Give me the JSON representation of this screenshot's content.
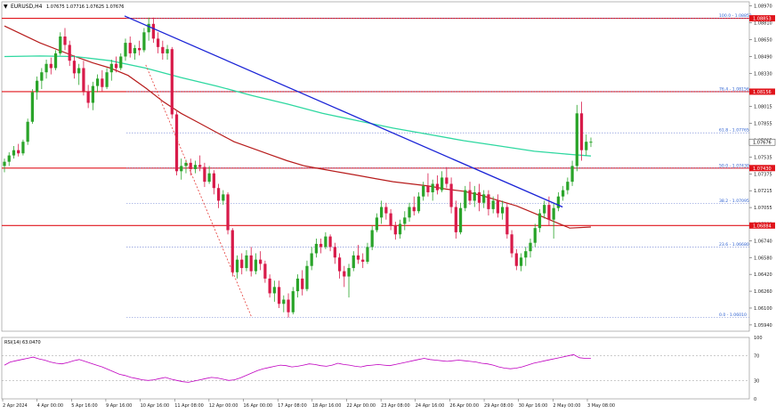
{
  "header": {
    "symbol": "EURUSD,H4",
    "ohlc": "1.07675 1.07716 1.07625 1.07676"
  },
  "colors": {
    "bull": "#2aa42a",
    "bear": "#d81b4a",
    "hline": "#e0141b",
    "trend": "#1a23d6",
    "ma_slow": "#b71c1c",
    "ma_fast": "#2ed8a0",
    "rsi": "#c000c0",
    "fib": "#2b5fd1",
    "axis_text": "#222222",
    "grid": "#dddddd"
  },
  "chart_data": [
    {
      "type": "candlestick",
      "title": "EURUSD,H4",
      "y_ticks": [
        "1.08970",
        "1.08810",
        "1.08650",
        "1.08490",
        "1.08330",
        "1.08170",
        "1.08015",
        "1.07855",
        "1.07695",
        "1.07535",
        "1.07375",
        "1.07215",
        "1.07055",
        "1.06900",
        "1.06740",
        "1.06580",
        "1.06420",
        "1.06260",
        "1.06100",
        "1.05940"
      ],
      "ylim": [
        1.0588,
        1.0901
      ],
      "x_ticks": [
        "2 Apr 2024",
        "4 Apr 00:00",
        "5 Apr 16:00",
        "9 Apr 16:00",
        "10 Apr 16:00",
        "11 Apr 08:00",
        "12 Apr 00:00",
        "16 Apr 00:00",
        "17 Apr 08:00",
        "18 Apr 16:00",
        "22 Apr 00:00",
        "23 Apr 08:00",
        "24 Apr 16:00",
        "26 Apr 00:00",
        "29 Apr 08:00",
        "30 Apr 16:00",
        "2 May 00:00",
        "3 May 08:00"
      ],
      "price_labels": [
        {
          "price": 1.08853,
          "text": "1.08853"
        },
        {
          "price": 1.08156,
          "text": "1.08156"
        },
        {
          "price": 1.07676,
          "text": "1.07676"
        },
        {
          "price": 1.0743,
          "text": "1.07430"
        },
        {
          "price": 1.06884,
          "text": "1.06884"
        }
      ],
      "horizontal_levels": [
        1.08853,
        1.08156,
        1.0743,
        1.06884
      ],
      "fibonacci": [
        {
          "label": "100.0 - 1.08853",
          "price": 1.08853
        },
        {
          "label": "76.4 - 1.08156",
          "price": 1.08156
        },
        {
          "label": "61.8 - 1.07765",
          "price": 1.07765
        },
        {
          "label": "50.0 - 1.07430",
          "price": 1.0743
        },
        {
          "label": "38.2 - 1.07095",
          "price": 1.07095
        },
        {
          "label": "23.6 - 1.06680",
          "price": 1.0668
        },
        {
          "label": "0.0 - 1.06010",
          "price": 1.0601
        }
      ],
      "trendline": {
        "from": [
          34,
          1.08875
        ],
        "to": [
          158,
          1.0706
        ]
      },
      "retrace_line": {
        "from": [
          40,
          1.0841
        ],
        "to": [
          70,
          1.0601
        ]
      },
      "ma_fast": [
        [
          0,
          1.0849
        ],
        [
          10,
          1.08495
        ],
        [
          20,
          1.0849
        ],
        [
          30,
          1.0845
        ],
        [
          40,
          1.0838
        ],
        [
          50,
          1.0829
        ],
        [
          60,
          1.0821
        ],
        [
          70,
          1.0812
        ],
        [
          80,
          1.0804
        ],
        [
          90,
          1.0795
        ],
        [
          100,
          1.0788
        ],
        [
          110,
          1.0781
        ],
        [
          120,
          1.0775
        ],
        [
          130,
          1.0769
        ],
        [
          140,
          1.0764
        ],
        [
          150,
          1.0759
        ],
        [
          160,
          1.0756
        ],
        [
          166,
          1.07545
        ]
      ],
      "ma_slow": [
        [
          0,
          1.0878
        ],
        [
          10,
          1.0862
        ],
        [
          20,
          1.0849
        ],
        [
          25,
          1.0843
        ],
        [
          30,
          1.0838
        ],
        [
          35,
          1.0831
        ],
        [
          40,
          1.0819
        ],
        [
          45,
          1.0806
        ],
        [
          50,
          1.0795
        ],
        [
          55,
          1.0786
        ],
        [
          60,
          1.0777
        ],
        [
          65,
          1.0768
        ],
        [
          70,
          1.0762
        ],
        [
          75,
          1.0756
        ],
        [
          80,
          1.075
        ],
        [
          85,
          1.0745
        ],
        [
          90,
          1.0742
        ],
        [
          95,
          1.0739
        ],
        [
          100,
          1.0736
        ],
        [
          105,
          1.0733
        ],
        [
          110,
          1.073
        ],
        [
          115,
          1.0728
        ],
        [
          120,
          1.0726
        ],
        [
          125,
          1.0723
        ],
        [
          130,
          1.0721
        ],
        [
          135,
          1.0717
        ],
        [
          140,
          1.0712
        ],
        [
          145,
          1.0707
        ],
        [
          150,
          1.07
        ],
        [
          155,
          1.0693
        ],
        [
          160,
          1.0686
        ],
        [
          166,
          1.0687
        ]
      ],
      "candles": [
        [
          1.0745,
          1.0752,
          1.0739,
          1.0749
        ],
        [
          1.0749,
          1.0758,
          1.0745,
          1.0755
        ],
        [
          1.0755,
          1.0764,
          1.0752,
          1.076
        ],
        [
          1.076,
          1.0766,
          1.0754,
          1.0757
        ],
        [
          1.0757,
          1.077,
          1.0755,
          1.0768
        ],
        [
          1.0768,
          1.079,
          1.0765,
          1.0787
        ],
        [
          1.0787,
          1.0818,
          1.0785,
          1.0815
        ],
        [
          1.0815,
          1.083,
          1.0808,
          1.0826
        ],
        [
          1.0826,
          1.0838,
          1.0818,
          1.0834
        ],
        [
          1.0834,
          1.0846,
          1.0828,
          1.0842
        ],
        [
          1.0842,
          1.0848,
          1.0832,
          1.0838
        ],
        [
          1.0838,
          1.0855,
          1.0836,
          1.0852
        ],
        [
          1.0852,
          1.0872,
          1.085,
          1.0868
        ],
        [
          1.0868,
          1.0876,
          1.0855,
          1.086
        ],
        [
          1.086,
          1.0864,
          1.084,
          1.0845
        ],
        [
          1.0845,
          1.085,
          1.0828,
          1.0833
        ],
        [
          1.0833,
          1.0842,
          1.0822,
          1.0838
        ],
        [
          1.0838,
          1.0845,
          1.0812,
          1.0816
        ],
        [
          1.0816,
          1.0822,
          1.08,
          1.0805
        ],
        [
          1.0805,
          1.0825,
          1.0798,
          1.0821
        ],
        [
          1.0821,
          1.0832,
          1.0815,
          1.0828
        ],
        [
          1.0828,
          1.0836,
          1.0816,
          1.082
        ],
        [
          1.082,
          1.0838,
          1.0818,
          1.0834
        ],
        [
          1.0834,
          1.0846,
          1.0826,
          1.0842
        ],
        [
          1.0842,
          1.0849,
          1.0834,
          1.0838
        ],
        [
          1.0838,
          1.0852,
          1.0836,
          1.0849
        ],
        [
          1.0849,
          1.0866,
          1.0845,
          1.0862
        ],
        [
          1.0862,
          1.0868,
          1.0848,
          1.0852
        ],
        [
          1.0852,
          1.086,
          1.0846,
          1.0857
        ],
        [
          1.0857,
          1.0864,
          1.085,
          1.0855
        ],
        [
          1.0855,
          1.0876,
          1.0853,
          1.0872
        ],
        [
          1.0872,
          1.0886,
          1.0864,
          1.088
        ],
        [
          1.088,
          1.0886,
          1.0862,
          1.0866
        ],
        [
          1.0866,
          1.0872,
          1.0852,
          1.0858
        ],
        [
          1.0858,
          1.0864,
          1.0846,
          1.0852
        ],
        [
          1.0852,
          1.086,
          1.0846,
          1.0856
        ],
        [
          1.0856,
          1.0858,
          1.079,
          1.0794
        ],
        [
          1.0794,
          1.0797,
          1.0736,
          1.074
        ],
        [
          1.074,
          1.0752,
          1.0732,
          1.0745
        ],
        [
          1.0745,
          1.0751,
          1.0738,
          1.0748
        ],
        [
          1.0748,
          1.0752,
          1.0736,
          1.0742
        ],
        [
          1.0742,
          1.075,
          1.0738,
          1.0746
        ],
        [
          1.0746,
          1.0755,
          1.074,
          1.0744
        ],
        [
          1.0744,
          1.0748,
          1.0725,
          1.073
        ],
        [
          1.073,
          1.0745,
          1.0728,
          1.0738
        ],
        [
          1.0738,
          1.0741,
          1.0718,
          1.0724
        ],
        [
          1.0724,
          1.0728,
          1.0705,
          1.0712
        ],
        [
          1.0712,
          1.0722,
          1.0708,
          1.0718
        ],
        [
          1.0718,
          1.072,
          1.068,
          1.0684
        ],
        [
          1.0684,
          1.0686,
          1.064,
          1.0644
        ],
        [
          1.0644,
          1.066,
          1.0638,
          1.0656
        ],
        [
          1.0656,
          1.0662,
          1.0642,
          1.0648
        ],
        [
          1.0648,
          1.0665,
          1.0645,
          1.066
        ],
        [
          1.066,
          1.0668,
          1.064,
          1.0645
        ],
        [
          1.0645,
          1.0662,
          1.0642,
          1.0656
        ],
        [
          1.0656,
          1.0664,
          1.0646,
          1.0652
        ],
        [
          1.0652,
          1.0655,
          1.0634,
          1.0638
        ],
        [
          1.0638,
          1.0642,
          1.062,
          1.0624
        ],
        [
          1.0624,
          1.0636,
          1.0616,
          1.063
        ],
        [
          1.063,
          1.0636,
          1.061,
          1.0614
        ],
        [
          1.0614,
          1.0622,
          1.0606,
          1.0618
        ],
        [
          1.0618,
          1.0624,
          1.0601,
          1.0606
        ],
        [
          1.0606,
          1.063,
          1.0604,
          1.0626
        ],
        [
          1.0626,
          1.0642,
          1.062,
          1.0638
        ],
        [
          1.0638,
          1.0646,
          1.0622,
          1.0628
        ],
        [
          1.0628,
          1.0655,
          1.0626,
          1.065
        ],
        [
          1.065,
          1.0668,
          1.0646,
          1.0662
        ],
        [
          1.0662,
          1.0676,
          1.0658,
          1.0671
        ],
        [
          1.0671,
          1.0676,
          1.0662,
          1.0668
        ],
        [
          1.0668,
          1.0682,
          1.0666,
          1.0678
        ],
        [
          1.0678,
          1.068,
          1.0664,
          1.0668
        ],
        [
          1.0668,
          1.0672,
          1.0652,
          1.0658
        ],
        [
          1.0658,
          1.0662,
          1.0638,
          1.0645
        ],
        [
          1.0645,
          1.065,
          1.063,
          1.064
        ],
        [
          1.064,
          1.0652,
          1.062,
          1.0648
        ],
        [
          1.0648,
          1.0664,
          1.0645,
          1.066
        ],
        [
          1.066,
          1.067,
          1.0652,
          1.0656
        ],
        [
          1.0656,
          1.0662,
          1.0648,
          1.0654
        ],
        [
          1.0654,
          1.0672,
          1.0652,
          1.0668
        ],
        [
          1.0668,
          1.0688,
          1.0665,
          1.0684
        ],
        [
          1.0684,
          1.07,
          1.0682,
          1.0696
        ],
        [
          1.0696,
          1.0712,
          1.069,
          1.0706
        ],
        [
          1.0706,
          1.071,
          1.0694,
          1.07
        ],
        [
          1.07,
          1.0704,
          1.0684,
          1.0688
        ],
        [
          1.0688,
          1.0692,
          1.0675,
          1.068
        ],
        [
          1.068,
          1.0694,
          1.0676,
          1.069
        ],
        [
          1.069,
          1.0702,
          1.0684,
          1.0696
        ],
        [
          1.0696,
          1.071,
          1.0692,
          1.0706
        ],
        [
          1.0706,
          1.0716,
          1.0698,
          1.0702
        ],
        [
          1.0702,
          1.072,
          1.07,
          1.0716
        ],
        [
          1.0716,
          1.073,
          1.0712,
          1.0726
        ],
        [
          1.0726,
          1.0738,
          1.0716,
          1.072
        ],
        [
          1.072,
          1.0732,
          1.0712,
          1.0728
        ],
        [
          1.0728,
          1.0736,
          1.0718,
          1.0722
        ],
        [
          1.0722,
          1.074,
          1.072,
          1.0734
        ],
        [
          1.0734,
          1.0744,
          1.0724,
          1.0728
        ],
        [
          1.0728,
          1.0734,
          1.07,
          1.0706
        ],
        [
          1.0706,
          1.0712,
          1.0676,
          1.0682
        ],
        [
          1.0682,
          1.071,
          1.068,
          1.0705
        ],
        [
          1.0705,
          1.0726,
          1.0702,
          1.0722
        ],
        [
          1.0722,
          1.073,
          1.0708,
          1.0712
        ],
        [
          1.0712,
          1.0726,
          1.0706,
          1.072
        ],
        [
          1.072,
          1.0728,
          1.0702,
          1.071
        ],
        [
          1.071,
          1.0722,
          1.0705,
          1.0718
        ],
        [
          1.0718,
          1.0722,
          1.0698,
          1.0704
        ],
        [
          1.0704,
          1.0716,
          1.07,
          1.0712
        ],
        [
          1.0712,
          1.0718,
          1.0696,
          1.07
        ],
        [
          1.07,
          1.0712,
          1.0694,
          1.0706
        ],
        [
          1.0706,
          1.071,
          1.0676,
          1.068
        ],
        [
          1.068,
          1.0684,
          1.0658,
          1.0662
        ],
        [
          1.0662,
          1.0666,
          1.0646,
          1.065
        ],
        [
          1.065,
          1.0662,
          1.0645,
          1.0658
        ],
        [
          1.0658,
          1.0668,
          1.065,
          1.0664
        ],
        [
          1.0664,
          1.0676,
          1.0658,
          1.0672
        ],
        [
          1.0672,
          1.069,
          1.0668,
          1.0686
        ],
        [
          1.0686,
          1.0704,
          1.0682,
          1.07
        ],
        [
          1.07,
          1.0712,
          1.0695,
          1.0708
        ],
        [
          1.0708,
          1.0716,
          1.0688,
          1.0694
        ],
        [
          1.0694,
          1.071,
          1.0676,
          1.0705
        ],
        [
          1.0705,
          1.072,
          1.0702,
          1.0716
        ],
        [
          1.0716,
          1.0726,
          1.0712,
          1.0722
        ],
        [
          1.0722,
          1.0734,
          1.0718,
          1.073
        ],
        [
          1.073,
          1.075,
          1.0726,
          1.0745
        ],
        [
          1.0745,
          1.0803,
          1.074,
          1.0795
        ],
        [
          1.0795,
          1.0806,
          1.075,
          1.076
        ],
        [
          1.076,
          1.0775,
          1.0755,
          1.0768
        ],
        [
          1.0768,
          1.0772,
          1.0763,
          1.0768
        ]
      ],
      "candle_x": {
        "first": 5,
        "last": 664
      },
      "ma_x_range": [
        0,
        166
      ]
    },
    {
      "type": "line",
      "title": "RSI(14) 63.0470",
      "y_ticks": [
        "100",
        "70",
        "30",
        "0"
      ],
      "ylim": [
        0,
        100
      ],
      "levels": [
        70,
        30
      ],
      "values": [
        55,
        60,
        62,
        64,
        66,
        68,
        65,
        63,
        60,
        58,
        57,
        59,
        62,
        64,
        61,
        58,
        55,
        52,
        48,
        44,
        40,
        38,
        35,
        33,
        31,
        30,
        31,
        33,
        35,
        32,
        30,
        28,
        27,
        29,
        31,
        33,
        35,
        34,
        32,
        30,
        31,
        34,
        38,
        42,
        46,
        49,
        51,
        53,
        55,
        54,
        52,
        53,
        55,
        57,
        56,
        54,
        53,
        55,
        58,
        56,
        55,
        53,
        52,
        54,
        55,
        56,
        55,
        54,
        56,
        58,
        60,
        62,
        64,
        66,
        64,
        63,
        62,
        61,
        62,
        63,
        62,
        61,
        60,
        58,
        57,
        55,
        52,
        50,
        49,
        50,
        52,
        55,
        58,
        60,
        62,
        64,
        66,
        68,
        70,
        72,
        67,
        66,
        66
      ],
      "x_range": [
        5,
        664
      ]
    }
  ]
}
